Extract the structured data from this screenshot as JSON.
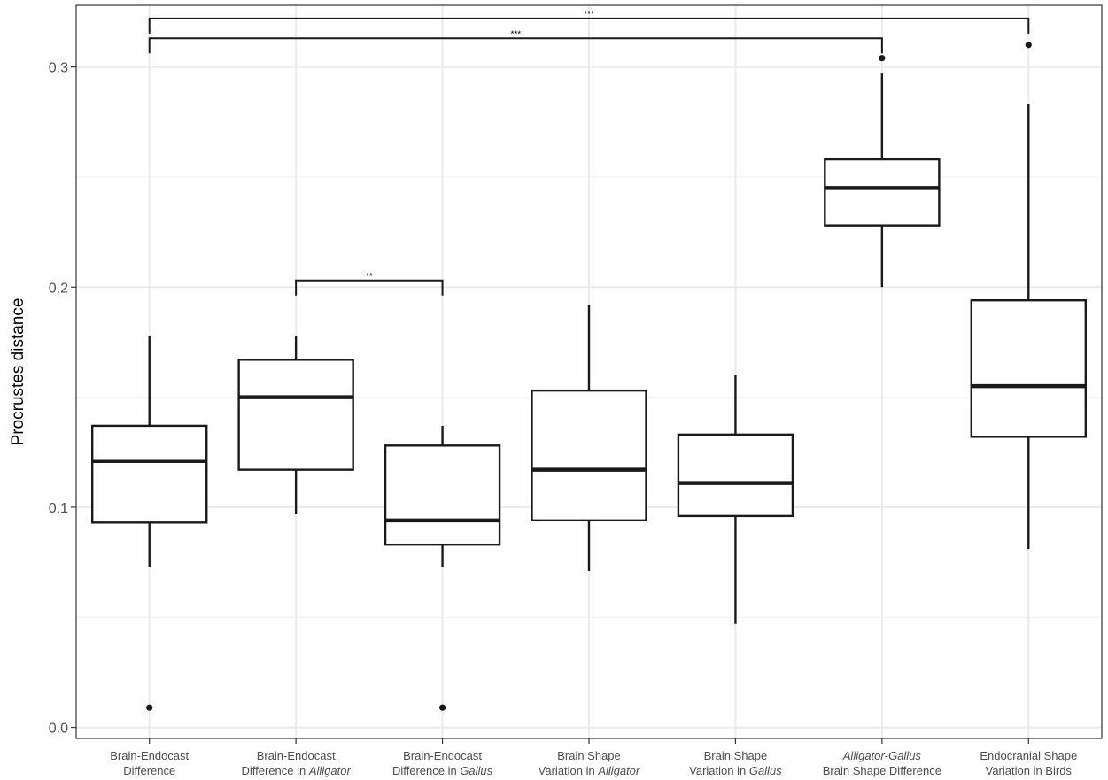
{
  "chart_data": {
    "type": "box",
    "title": "",
    "xlabel": "",
    "ylabel": "Procrustes distance",
    "ylim": [
      -0.005,
      0.328
    ],
    "yticks": [
      0.0,
      0.1,
      0.2,
      0.3
    ],
    "ytick_labels": [
      "0.0",
      "0.1",
      "0.2",
      "0.3"
    ],
    "grid": true,
    "categories": [
      {
        "lines": [
          [
            {
              "t": "Brain-Endocast",
              "i": false
            }
          ],
          [
            {
              "t": "Difference",
              "i": false
            }
          ]
        ]
      },
      {
        "lines": [
          [
            {
              "t": "Brain-Endocast",
              "i": false
            }
          ],
          [
            {
              "t": "Difference in ",
              "i": false
            },
            {
              "t": "Alligator",
              "i": true
            }
          ]
        ]
      },
      {
        "lines": [
          [
            {
              "t": "Brain-Endocast",
              "i": false
            }
          ],
          [
            {
              "t": "Difference in ",
              "i": false
            },
            {
              "t": "Gallus",
              "i": true
            }
          ]
        ]
      },
      {
        "lines": [
          [
            {
              "t": "Brain Shape",
              "i": false
            }
          ],
          [
            {
              "t": "Variation in ",
              "i": false
            },
            {
              "t": "Alligator",
              "i": true
            }
          ]
        ]
      },
      {
        "lines": [
          [
            {
              "t": "Brain Shape",
              "i": false
            }
          ],
          [
            {
              "t": "Variation in ",
              "i": false
            },
            {
              "t": "Gallus",
              "i": true
            }
          ]
        ]
      },
      {
        "lines": [
          [
            {
              "t": "Alligator",
              "i": true
            },
            {
              "t": "-",
              "i": false
            },
            {
              "t": "Gallus",
              "i": true
            }
          ],
          [
            {
              "t": "Brain Shape Difference",
              "i": false
            }
          ]
        ]
      },
      {
        "lines": [
          [
            {
              "t": "Endocranial Shape",
              "i": false
            }
          ],
          [
            {
              "t": "Variation in Birds",
              "i": false
            }
          ]
        ]
      }
    ],
    "boxes": [
      {
        "whisker_low": 0.073,
        "q1": 0.093,
        "median": 0.121,
        "q3": 0.137,
        "whisker_high": 0.178,
        "outliers": [
          0.009
        ]
      },
      {
        "whisker_low": 0.097,
        "q1": 0.117,
        "median": 0.15,
        "q3": 0.167,
        "whisker_high": 0.178,
        "outliers": []
      },
      {
        "whisker_low": 0.073,
        "q1": 0.083,
        "median": 0.094,
        "q3": 0.128,
        "whisker_high": 0.137,
        "outliers": [
          0.009
        ]
      },
      {
        "whisker_low": 0.071,
        "q1": 0.094,
        "median": 0.117,
        "q3": 0.153,
        "whisker_high": 0.192,
        "outliers": []
      },
      {
        "whisker_low": 0.047,
        "q1": 0.096,
        "median": 0.111,
        "q3": 0.133,
        "whisker_high": 0.16,
        "outliers": []
      },
      {
        "whisker_low": 0.2,
        "q1": 0.228,
        "median": 0.245,
        "q3": 0.258,
        "whisker_high": 0.297,
        "outliers": [
          0.304
        ]
      },
      {
        "whisker_low": 0.081,
        "q1": 0.132,
        "median": 0.155,
        "q3": 0.194,
        "whisker_high": 0.283,
        "outliers": [
          0.31
        ]
      }
    ],
    "significance": [
      {
        "from": 0,
        "to": 6,
        "y": 0.322,
        "label": "***"
      },
      {
        "from": 0,
        "to": 5,
        "y": 0.313,
        "label": "***"
      },
      {
        "from": 1,
        "to": 2,
        "y": 0.203,
        "label": "**"
      }
    ]
  }
}
